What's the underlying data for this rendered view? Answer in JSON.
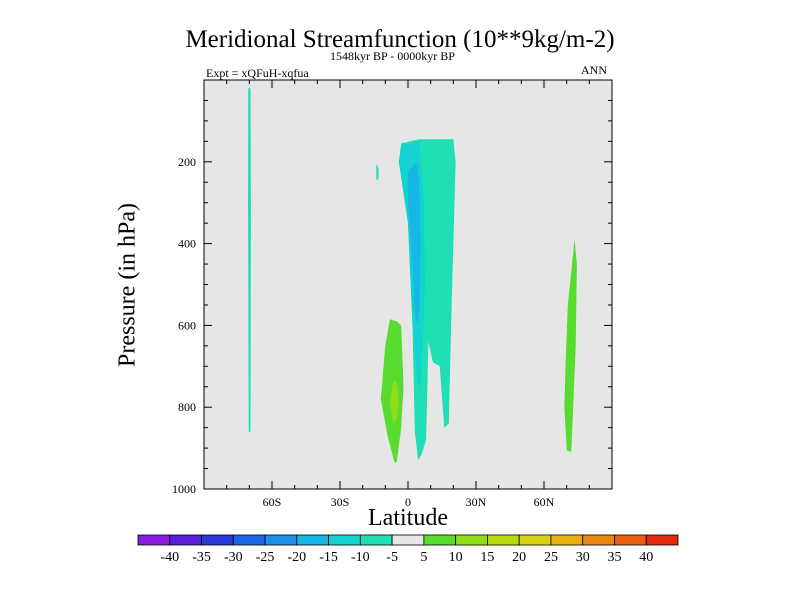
{
  "chart_data": {
    "type": "heatmap",
    "title": "Meridional Streamfunction (10**9kg/m-2)",
    "subtitle": "1548kyr BP - 0000kyr BP",
    "experiment": "Expt = xQFuH-xqfua",
    "season": "ANN",
    "xlabel": "Latitude",
    "ylabel": "Pressure (in hPa)",
    "xlim": [
      -90,
      90
    ],
    "ylim": [
      0,
      1000
    ],
    "x_ticks": [
      {
        "value": -60,
        "label": "60S"
      },
      {
        "value": -30,
        "label": "30S"
      },
      {
        "value": 0,
        "label": "0"
      },
      {
        "value": 30,
        "label": "30N"
      },
      {
        "value": 60,
        "label": "60N"
      }
    ],
    "y_ticks": [
      {
        "value": 200,
        "label": "200"
      },
      {
        "value": 400,
        "label": "400"
      },
      {
        "value": 600,
        "label": "600"
      },
      {
        "value": 800,
        "label": "800"
      },
      {
        "value": 1000,
        "label": "1000"
      }
    ],
    "colorbar": {
      "labels": [
        "-40",
        "-35",
        "-30",
        "-25",
        "-20",
        "-15",
        "-10",
        "-5",
        "5",
        "10",
        "15",
        "20",
        "25",
        "30",
        "35",
        "40"
      ],
      "colors": [
        "#8a1ee0",
        "#5a22d8",
        "#2a3ad8",
        "#1e66e6",
        "#1a90e8",
        "#16b6e6",
        "#14d2d0",
        "#1ee0b4",
        "#e6e6e6",
        "#58dc30",
        "#90dc18",
        "#b6dc10",
        "#d8d010",
        "#e6b010",
        "#e68a10",
        "#e66010",
        "#e02a10"
      ]
    },
    "regions": [
      {
        "name": "band-70S",
        "color": "#1ee0b4",
        "points": [
          [
            -70.5,
            20
          ],
          [
            -69.5,
            20
          ],
          [
            -69.3,
            300
          ],
          [
            -69.5,
            860
          ],
          [
            -70.3,
            860
          ],
          [
            -70.6,
            300
          ]
        ]
      },
      {
        "name": "upper-cell-outer",
        "color": "#1ee0b4",
        "points": [
          [
            -3,
            155
          ],
          [
            5,
            145
          ],
          [
            20,
            145
          ],
          [
            21,
            200
          ],
          [
            19,
            600
          ],
          [
            18,
            840
          ],
          [
            16,
            850
          ],
          [
            14,
            700
          ],
          [
            11,
            690
          ],
          [
            9,
            640
          ],
          [
            8,
            880
          ],
          [
            6,
            915
          ],
          [
            4.5,
            930
          ],
          [
            3,
            860
          ],
          [
            2,
            600
          ],
          [
            0,
            350
          ],
          [
            -4,
            200
          ]
        ]
      },
      {
        "name": "upper-cell-minus10",
        "color": "#14d2d0",
        "points": [
          [
            -3,
            160
          ],
          [
            5,
            150
          ],
          [
            7,
            300
          ],
          [
            7.5,
            500
          ],
          [
            6.5,
            650
          ],
          [
            5.5,
            760
          ],
          [
            4,
            730
          ],
          [
            2,
            600
          ],
          [
            0,
            350
          ],
          [
            -4,
            200
          ]
        ]
      },
      {
        "name": "upper-cell-minus15",
        "color": "#16b6e6",
        "points": [
          [
            0,
            225
          ],
          [
            4,
            200
          ],
          [
            5,
            250
          ],
          [
            5.5,
            400
          ],
          [
            5,
            560
          ],
          [
            4,
            600
          ],
          [
            3,
            560
          ],
          [
            2,
            450
          ],
          [
            0,
            300
          ]
        ]
      },
      {
        "name": "blob-15S",
        "color": "#1ee0b4",
        "points": [
          [
            -14,
            205
          ],
          [
            -13,
            215
          ],
          [
            -13,
            240
          ],
          [
            -14,
            245
          ]
        ]
      },
      {
        "name": "lower-cell-5",
        "color": "#58dc30",
        "points": [
          [
            -8,
            585
          ],
          [
            -5,
            590
          ],
          [
            -3,
            600
          ],
          [
            -2,
            750
          ],
          [
            -3,
            850
          ],
          [
            -5,
            935
          ],
          [
            -6,
            935
          ],
          [
            -9,
            870
          ],
          [
            -12,
            780
          ],
          [
            -10,
            650
          ]
        ]
      },
      {
        "name": "lower-cell-10",
        "color": "#90dc18",
        "points": [
          [
            -6.5,
            735
          ],
          [
            -5,
            740
          ],
          [
            -4,
            790
          ],
          [
            -5,
            830
          ],
          [
            -6.5,
            840
          ],
          [
            -8,
            790
          ]
        ]
      },
      {
        "name": "band-70N",
        "color": "#58dc30",
        "points": [
          [
            73.5,
            390
          ],
          [
            74.5,
            450
          ],
          [
            74,
            650
          ],
          [
            72.5,
            850
          ],
          [
            72,
            910
          ],
          [
            70,
            905
          ],
          [
            69,
            800
          ],
          [
            69.5,
            700
          ],
          [
            70.5,
            550
          ]
        ]
      }
    ]
  }
}
